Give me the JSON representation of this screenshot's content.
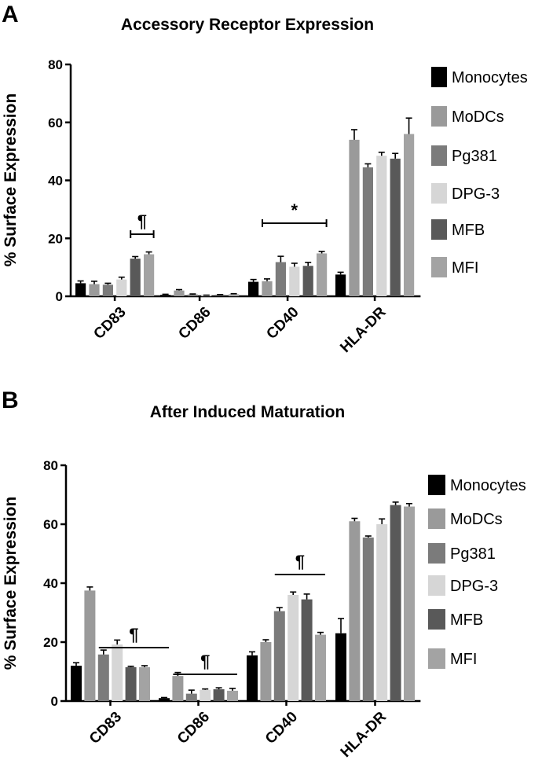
{
  "chart_data": [
    {
      "type": "bar",
      "panel_label": "A",
      "title": "Accessory Receptor Expression",
      "ylabel": "% Surface Expression",
      "xlabel": "",
      "ylim": [
        0,
        80
      ],
      "yticks": [
        "0",
        "20",
        "40",
        "60",
        "80"
      ],
      "categories": [
        "CD83",
        "CD86",
        "CD40",
        "HLA-DR"
      ],
      "series": [
        {
          "name": "Monocytes",
          "color": "#000000",
          "values": [
            4.5,
            0.5,
            5.0,
            7.5
          ],
          "errors": [
            0.8,
            0.2,
            0.8,
            0.8
          ]
        },
        {
          "name": "MoDCs",
          "color": "#9a9a9a",
          "values": [
            4.2,
            2.0,
            5.2,
            54.0
          ],
          "errors": [
            1.0,
            0.3,
            0.8,
            3.5
          ]
        },
        {
          "name": "Pg381",
          "color": "#7b7b7b",
          "values": [
            4.0,
            0.6,
            11.8,
            44.5
          ],
          "errors": [
            0.5,
            0.2,
            2.0,
            1.2
          ]
        },
        {
          "name": "DPG-3",
          "color": "#d6d6d6",
          "values": [
            5.8,
            0.3,
            10.2,
            48.5
          ],
          "errors": [
            0.8,
            0.1,
            1.2,
            1.2
          ]
        },
        {
          "name": "MFB",
          "color": "#595959",
          "values": [
            13.0,
            0.5,
            10.5,
            47.5
          ],
          "errors": [
            0.7,
            0.1,
            1.2,
            1.8
          ]
        },
        {
          "name": "MFI",
          "color": "#a3a3a3",
          "values": [
            14.5,
            0.7,
            14.8,
            56.0
          ],
          "errors": [
            0.8,
            0.2,
            0.7,
            5.5
          ]
        }
      ],
      "legend": [
        "Monocytes",
        "MoDCs",
        "Pg381",
        "DPG-3",
        "MFB",
        "MFI"
      ],
      "annotations": [
        {
          "symbol": "¶",
          "category_from": 0,
          "series_from": 4,
          "category_to": 0,
          "series_to": 5
        },
        {
          "symbol": "*",
          "category_from": 2,
          "series_from": 1,
          "category_to": 2,
          "series_to": 5
        }
      ],
      "legend_position": "right"
    },
    {
      "type": "bar",
      "panel_label": "B",
      "title": "After Induced Maturation",
      "ylabel": "% Surface Expression",
      "xlabel": "",
      "ylim": [
        0,
        80
      ],
      "yticks": [
        "0",
        "20",
        "40",
        "60",
        "80"
      ],
      "categories": [
        "CD83",
        "CD86",
        "CD40",
        "HLA-DR"
      ],
      "series": [
        {
          "name": "Monocytes",
          "color": "#000000",
          "values": [
            12.0,
            1.0,
            15.5,
            23.0
          ],
          "errors": [
            1.0,
            0.2,
            1.2,
            5.0
          ]
        },
        {
          "name": "MoDCs",
          "color": "#9a9a9a",
          "values": [
            37.5,
            8.5,
            20.0,
            61.0
          ],
          "errors": [
            1.2,
            1.2,
            0.8,
            1.0
          ]
        },
        {
          "name": "Pg381",
          "color": "#7b7b7b",
          "values": [
            15.8,
            2.5,
            30.5,
            55.5
          ],
          "errors": [
            1.5,
            1.2,
            1.2,
            0.5
          ]
        },
        {
          "name": "DPG-3",
          "color": "#d6d6d6",
          "values": [
            19.2,
            3.8,
            36.0,
            60.0
          ],
          "errors": [
            1.5,
            0.3,
            1.0,
            1.8
          ]
        },
        {
          "name": "MFB",
          "color": "#595959",
          "values": [
            11.5,
            4.0,
            34.5,
            66.5
          ],
          "errors": [
            0.3,
            0.5,
            1.8,
            1.0
          ]
        },
        {
          "name": "MFI",
          "color": "#a3a3a3",
          "values": [
            11.5,
            3.5,
            22.5,
            66.0
          ],
          "errors": [
            0.5,
            0.8,
            0.8,
            1.0
          ]
        }
      ],
      "legend": [
        "Monocytes",
        "MoDCs",
        "Pg381",
        "DPG-3",
        "MFB",
        "MFI"
      ],
      "annotations": [
        {
          "symbol": "¶",
          "category_from": 0,
          "series_from": 2,
          "category_to": 1,
          "series_to": 0
        },
        {
          "symbol": "¶",
          "category_from": 1,
          "series_from": 1,
          "category_to": 1,
          "series_to": 5
        },
        {
          "symbol": "¶",
          "category_from": 2,
          "series_from": 2,
          "category_to": 2,
          "series_to": 5
        }
      ],
      "legend_position": "right"
    }
  ]
}
